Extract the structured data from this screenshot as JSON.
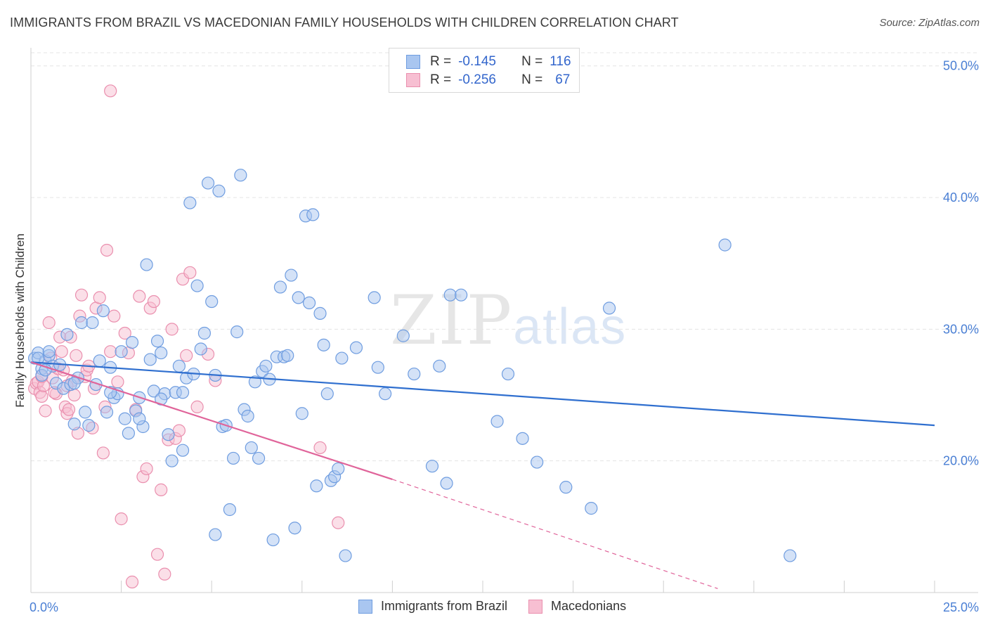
{
  "title": "IMMIGRANTS FROM BRAZIL VS MACEDONIAN FAMILY HOUSEHOLDS WITH CHILDREN CORRELATION CHART",
  "source": "Source: ZipAtlas.com",
  "watermark": {
    "zip": "ZIP",
    "atlas": "atlas"
  },
  "legend": {
    "series1": {
      "r_label": "R =",
      "r_value": "-0.145",
      "n_label": "N =",
      "n_value": "116"
    },
    "series2": {
      "r_label": "R =",
      "r_value": "-0.256",
      "n_label": "N =",
      "n_value": "67"
    }
  },
  "colors": {
    "blue_fill": "#a9c6f0",
    "blue_stroke": "#6f9de0",
    "blue_line": "#2f6fcf",
    "pink_fill": "#f7bfd2",
    "pink_stroke": "#ea8fae",
    "pink_line": "#e0649a",
    "grid": "#e4e4e4",
    "axis_text": "#4a7fd4"
  },
  "chart_data": {
    "type": "scatter",
    "title": "IMMIGRANTS FROM BRAZIL VS MACEDONIAN FAMILY HOUSEHOLDS WITH CHILDREN CORRELATION CHART",
    "xlabel": "",
    "ylabel": "Family Households with Children",
    "xlim": [
      0,
      25
    ],
    "ylim": [
      10,
      51
    ],
    "x_tick_labels": [
      "0.0%",
      "25.0%"
    ],
    "y_ticks": [
      20,
      30,
      40,
      50
    ],
    "y_tick_labels": [
      "20.0%",
      "30.0%",
      "40.0%",
      "50.0%"
    ],
    "series": [
      {
        "name": "Immigrants from Brazil",
        "regression": {
          "x": [
            0,
            25
          ],
          "y": [
            27.5,
            22.7
          ]
        },
        "points": [
          [
            0.1,
            27.8
          ],
          [
            0.2,
            28.2
          ],
          [
            0.3,
            27.0
          ],
          [
            0.4,
            27.6
          ],
          [
            0.5,
            28.0
          ],
          [
            0.6,
            27.2
          ],
          [
            0.7,
            25.9
          ],
          [
            0.8,
            27.3
          ],
          [
            0.9,
            25.5
          ],
          [
            1.0,
            29.6
          ],
          [
            1.1,
            25.8
          ],
          [
            1.2,
            22.8
          ],
          [
            1.3,
            26.3
          ],
          [
            1.4,
            30.5
          ],
          [
            1.5,
            23.7
          ],
          [
            1.6,
            22.7
          ],
          [
            1.7,
            30.5
          ],
          [
            1.8,
            25.8
          ],
          [
            1.9,
            27.6
          ],
          [
            2.0,
            31.4
          ],
          [
            2.1,
            23.7
          ],
          [
            2.2,
            27.1
          ],
          [
            2.3,
            24.8
          ],
          [
            2.4,
            25.1
          ],
          [
            2.5,
            28.3
          ],
          [
            2.6,
            23.2
          ],
          [
            2.7,
            22.1
          ],
          [
            2.8,
            29.0
          ],
          [
            2.9,
            23.8
          ],
          [
            3.0,
            24.8
          ],
          [
            3.1,
            22.6
          ],
          [
            3.2,
            34.9
          ],
          [
            3.3,
            27.7
          ],
          [
            3.4,
            25.3
          ],
          [
            3.5,
            29.1
          ],
          [
            3.6,
            28.2
          ],
          [
            3.7,
            25.1
          ],
          [
            3.8,
            22.0
          ],
          [
            3.9,
            20.0
          ],
          [
            4.0,
            25.2
          ],
          [
            4.1,
            27.2
          ],
          [
            4.2,
            20.8
          ],
          [
            4.3,
            26.3
          ],
          [
            4.4,
            39.6
          ],
          [
            4.5,
            26.6
          ],
          [
            4.6,
            33.3
          ],
          [
            4.7,
            28.5
          ],
          [
            4.8,
            29.7
          ],
          [
            4.9,
            41.1
          ],
          [
            5.0,
            32.1
          ],
          [
            5.1,
            14.4
          ],
          [
            5.2,
            40.5
          ],
          [
            5.3,
            22.6
          ],
          [
            5.4,
            22.7
          ],
          [
            5.5,
            16.3
          ],
          [
            5.6,
            20.2
          ],
          [
            5.7,
            29.8
          ],
          [
            5.8,
            41.7
          ],
          [
            5.9,
            23.9
          ],
          [
            6.0,
            23.4
          ],
          [
            6.1,
            21.0
          ],
          [
            6.2,
            26.0
          ],
          [
            6.3,
            20.2
          ],
          [
            6.4,
            26.8
          ],
          [
            6.5,
            27.2
          ],
          [
            6.6,
            26.2
          ],
          [
            6.7,
            14.0
          ],
          [
            6.8,
            27.9
          ],
          [
            6.9,
            33.2
          ],
          [
            7.0,
            27.9
          ],
          [
            7.1,
            28.0
          ],
          [
            7.2,
            34.1
          ],
          [
            7.3,
            14.9
          ],
          [
            7.4,
            32.4
          ],
          [
            7.5,
            23.6
          ],
          [
            7.6,
            38.6
          ],
          [
            7.7,
            32.0
          ],
          [
            7.8,
            38.7
          ],
          [
            7.9,
            18.1
          ],
          [
            8.0,
            31.2
          ],
          [
            8.1,
            28.8
          ],
          [
            8.2,
            25.1
          ],
          [
            8.3,
            18.5
          ],
          [
            8.4,
            18.8
          ],
          [
            8.5,
            19.4
          ],
          [
            8.6,
            27.8
          ],
          [
            8.7,
            12.8
          ],
          [
            9.0,
            28.6
          ],
          [
            9.5,
            32.4
          ],
          [
            9.6,
            27.1
          ],
          [
            9.8,
            25.1
          ],
          [
            10.3,
            29.5
          ],
          [
            10.6,
            26.6
          ],
          [
            11.1,
            19.6
          ],
          [
            11.3,
            27.2
          ],
          [
            11.5,
            18.3
          ],
          [
            11.6,
            32.6
          ],
          [
            11.9,
            32.6
          ],
          [
            12.9,
            23.0
          ],
          [
            13.2,
            26.6
          ],
          [
            13.6,
            21.7
          ],
          [
            14.0,
            19.9
          ],
          [
            14.8,
            18.0
          ],
          [
            15.5,
            16.4
          ],
          [
            16.0,
            31.6
          ],
          [
            19.2,
            36.4
          ],
          [
            21.0,
            12.8
          ],
          [
            2.2,
            25.2
          ],
          [
            3.0,
            23.2
          ],
          [
            0.3,
            26.5
          ],
          [
            0.5,
            28.3
          ],
          [
            1.2,
            25.9
          ],
          [
            4.2,
            25.2
          ],
          [
            5.1,
            26.5
          ],
          [
            3.6,
            24.7
          ],
          [
            0.2,
            27.8
          ],
          [
            0.4,
            26.9
          ]
        ]
      },
      {
        "name": "Macedonians",
        "regression": {
          "x": [
            0,
            10
          ],
          "y": [
            27.5,
            18.6
          ]
        },
        "regression_dashed": {
          "x": [
            10,
            19
          ],
          "y": [
            18.6,
            10.3
          ]
        },
        "points": [
          [
            0.1,
            25.5
          ],
          [
            0.15,
            25.9
          ],
          [
            0.2,
            26.0
          ],
          [
            0.25,
            25.2
          ],
          [
            0.3,
            24.9
          ],
          [
            0.35,
            25.7
          ],
          [
            0.4,
            23.8
          ],
          [
            0.5,
            30.5
          ],
          [
            0.55,
            27.8
          ],
          [
            0.6,
            26.3
          ],
          [
            0.7,
            25.1
          ],
          [
            0.75,
            27.0
          ],
          [
            0.8,
            29.4
          ],
          [
            0.85,
            28.3
          ],
          [
            0.9,
            26.9
          ],
          [
            0.95,
            24.1
          ],
          [
            1.0,
            23.6
          ],
          [
            1.05,
            23.9
          ],
          [
            1.1,
            29.4
          ],
          [
            1.15,
            26.1
          ],
          [
            1.2,
            25.0
          ],
          [
            1.25,
            28.0
          ],
          [
            1.3,
            22.1
          ],
          [
            1.35,
            31.0
          ],
          [
            1.4,
            32.6
          ],
          [
            1.5,
            26.4
          ],
          [
            1.55,
            26.9
          ],
          [
            1.6,
            27.2
          ],
          [
            1.7,
            22.5
          ],
          [
            1.75,
            25.5
          ],
          [
            1.8,
            31.6
          ],
          [
            1.9,
            32.4
          ],
          [
            2.0,
            20.6
          ],
          [
            2.05,
            24.1
          ],
          [
            2.1,
            36.0
          ],
          [
            2.2,
            48.1
          ],
          [
            2.3,
            31.0
          ],
          [
            2.4,
            26.0
          ],
          [
            2.5,
            15.6
          ],
          [
            2.6,
            29.7
          ],
          [
            2.7,
            28.2
          ],
          [
            2.8,
            10.8
          ],
          [
            2.9,
            23.9
          ],
          [
            3.0,
            32.5
          ],
          [
            3.1,
            18.8
          ],
          [
            3.2,
            19.4
          ],
          [
            3.3,
            31.6
          ],
          [
            3.4,
            32.1
          ],
          [
            3.5,
            12.9
          ],
          [
            3.6,
            17.8
          ],
          [
            3.7,
            11.4
          ],
          [
            3.8,
            21.6
          ],
          [
            3.9,
            30.0
          ],
          [
            4.0,
            21.7
          ],
          [
            4.1,
            22.3
          ],
          [
            4.2,
            33.8
          ],
          [
            4.3,
            28.0
          ],
          [
            4.4,
            34.3
          ],
          [
            4.6,
            24.1
          ],
          [
            4.9,
            28.1
          ],
          [
            5.1,
            26.1
          ],
          [
            8.0,
            21.0
          ],
          [
            8.5,
            15.3
          ],
          [
            0.3,
            26.4
          ],
          [
            0.65,
            25.2
          ],
          [
            1.0,
            25.7
          ],
          [
            2.2,
            28.3
          ]
        ]
      }
    ]
  },
  "bottom_legend": {
    "series1": "Immigrants from Brazil",
    "series2": "Macedonians"
  }
}
